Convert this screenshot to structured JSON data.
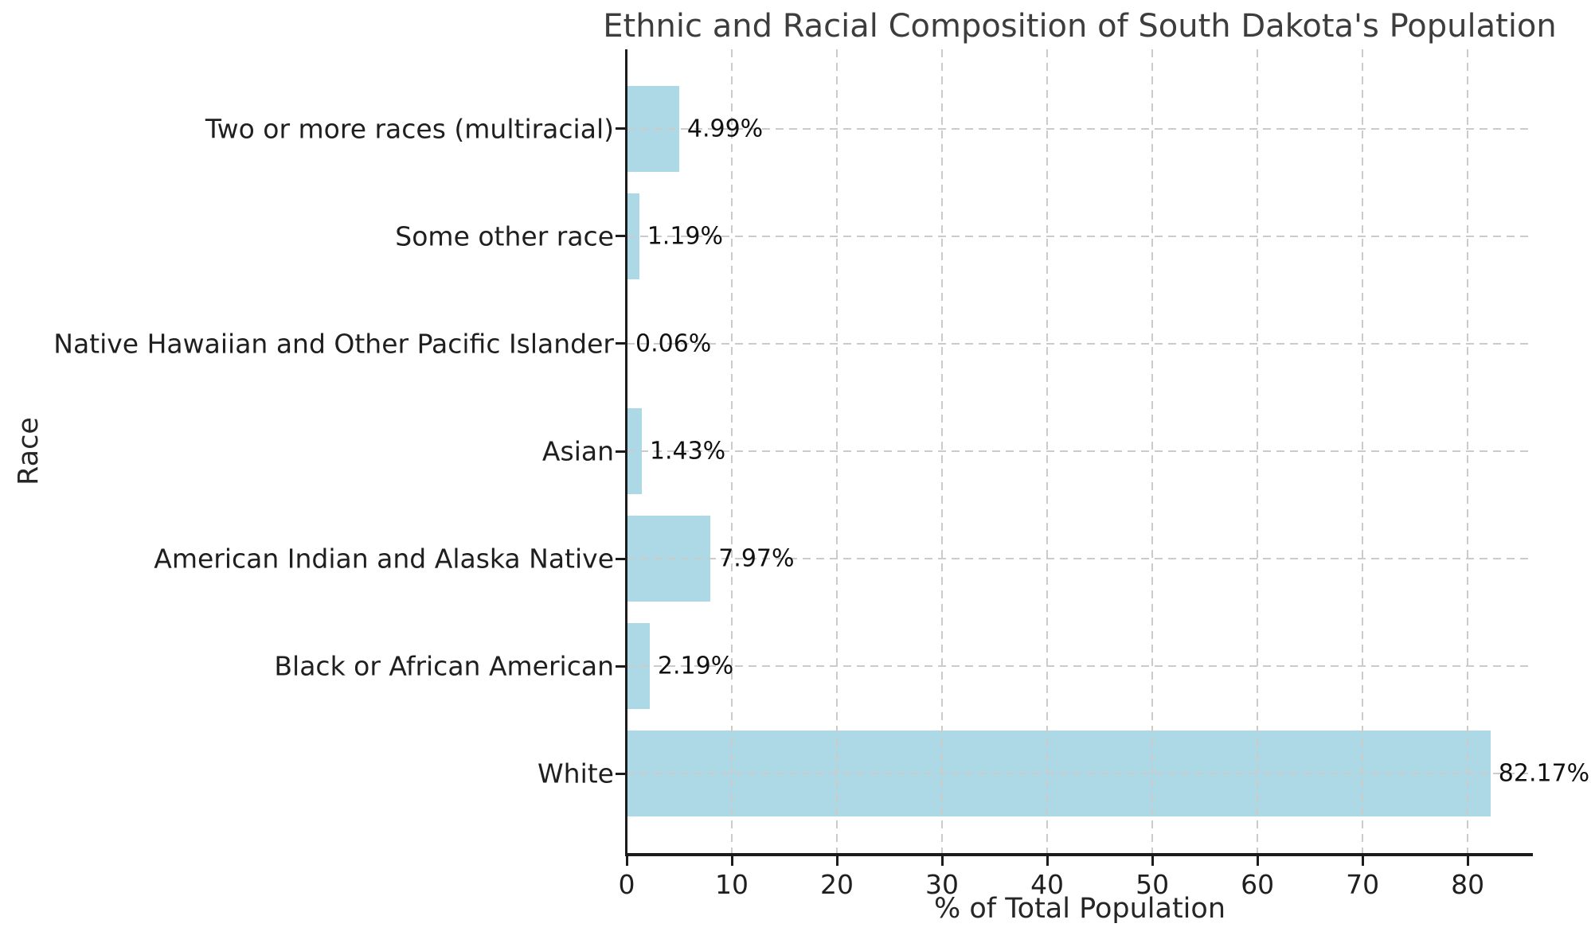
{
  "chart_data": {
    "type": "bar",
    "orientation": "horizontal",
    "title": "Ethnic and Racial Composition of South Dakota's Population",
    "xlabel": "% of Total Population",
    "ylabel": "Race",
    "categories": [
      "Two or more races (multiracial)",
      "Some other race",
      "Native Hawaiian and Other Pacific Islander",
      "Asian",
      "American Indian and Alaska Native",
      "Black or African American",
      "White"
    ],
    "values": [
      4.99,
      1.19,
      0.06,
      1.43,
      7.97,
      2.19,
      82.17
    ],
    "value_labels": [
      "4.99%",
      "1.19%",
      "0.06%",
      "1.43%",
      "7.97%",
      "2.19%",
      "82.17%"
    ],
    "x_ticks": [
      0,
      10,
      20,
      30,
      40,
      50,
      60,
      70,
      80
    ],
    "x_tick_labels": [
      "0",
      "10",
      "20",
      "30",
      "40",
      "50",
      "60",
      "70",
      "80"
    ],
    "xlim": [
      0,
      86.2
    ],
    "bar_color": "#ADD8E6",
    "grid": true,
    "grid_style": "dashed",
    "grid_color": "#cbcbcb",
    "spine_color": "#1c1c1c",
    "legend": "none"
  }
}
